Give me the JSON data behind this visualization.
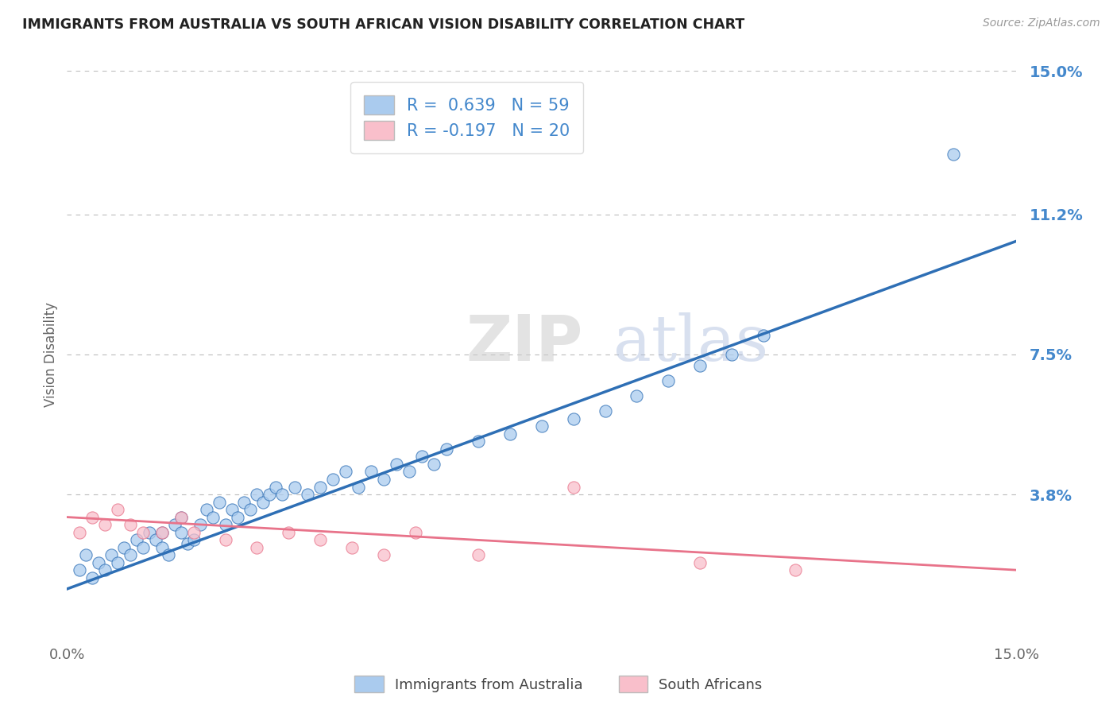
{
  "title": "IMMIGRANTS FROM AUSTRALIA VS SOUTH AFRICAN VISION DISABILITY CORRELATION CHART",
  "source": "Source: ZipAtlas.com",
  "ylabel": "Vision Disability",
  "xlim": [
    0.0,
    0.15
  ],
  "ylim": [
    0.0,
    0.15
  ],
  "yticks": [
    0.038,
    0.075,
    0.112,
    0.15
  ],
  "ytick_labels": [
    "3.8%",
    "7.5%",
    "11.2%",
    "15.0%"
  ],
  "xticks": [
    0.0,
    0.15
  ],
  "xtick_labels": [
    "0.0%",
    "15.0%"
  ],
  "blue_R": 0.639,
  "blue_N": 59,
  "pink_R": -0.197,
  "pink_N": 20,
  "blue_color": "#AACBEE",
  "pink_color": "#F9BFCB",
  "blue_line_color": "#2E6FB5",
  "pink_line_color": "#E8738A",
  "legend_label_blue": "Immigrants from Australia",
  "legend_label_pink": "South Africans",
  "background_color": "#FFFFFF",
  "title_color": "#222222",
  "axis_label_color": "#666666",
  "ytick_color": "#4488CC",
  "blue_scatter_x": [
    0.002,
    0.003,
    0.004,
    0.005,
    0.006,
    0.007,
    0.008,
    0.009,
    0.01,
    0.011,
    0.012,
    0.013,
    0.014,
    0.015,
    0.015,
    0.016,
    0.017,
    0.018,
    0.018,
    0.019,
    0.02,
    0.021,
    0.022,
    0.023,
    0.024,
    0.025,
    0.026,
    0.027,
    0.028,
    0.029,
    0.03,
    0.031,
    0.032,
    0.033,
    0.034,
    0.036,
    0.038,
    0.04,
    0.042,
    0.044,
    0.046,
    0.048,
    0.05,
    0.052,
    0.054,
    0.056,
    0.058,
    0.06,
    0.065,
    0.07,
    0.075,
    0.08,
    0.085,
    0.09,
    0.095,
    0.1,
    0.105,
    0.11,
    0.14
  ],
  "blue_scatter_y": [
    0.018,
    0.022,
    0.016,
    0.02,
    0.018,
    0.022,
    0.02,
    0.024,
    0.022,
    0.026,
    0.024,
    0.028,
    0.026,
    0.024,
    0.028,
    0.022,
    0.03,
    0.028,
    0.032,
    0.025,
    0.026,
    0.03,
    0.034,
    0.032,
    0.036,
    0.03,
    0.034,
    0.032,
    0.036,
    0.034,
    0.038,
    0.036,
    0.038,
    0.04,
    0.038,
    0.04,
    0.038,
    0.04,
    0.042,
    0.044,
    0.04,
    0.044,
    0.042,
    0.046,
    0.044,
    0.048,
    0.046,
    0.05,
    0.052,
    0.054,
    0.056,
    0.058,
    0.06,
    0.064,
    0.068,
    0.072,
    0.075,
    0.08,
    0.128
  ],
  "pink_scatter_x": [
    0.002,
    0.004,
    0.006,
    0.008,
    0.01,
    0.012,
    0.015,
    0.018,
    0.02,
    0.025,
    0.03,
    0.035,
    0.04,
    0.045,
    0.05,
    0.055,
    0.065,
    0.08,
    0.1,
    0.115
  ],
  "pink_scatter_y": [
    0.028,
    0.032,
    0.03,
    0.034,
    0.03,
    0.028,
    0.028,
    0.032,
    0.028,
    0.026,
    0.024,
    0.028,
    0.026,
    0.024,
    0.022,
    0.028,
    0.022,
    0.04,
    0.02,
    0.018
  ],
  "blue_line_x0": 0.0,
  "blue_line_y0": 0.013,
  "blue_line_x1": 0.15,
  "blue_line_y1": 0.105,
  "pink_line_x0": 0.0,
  "pink_line_y0": 0.032,
  "pink_line_x1": 0.15,
  "pink_line_y1": 0.018
}
